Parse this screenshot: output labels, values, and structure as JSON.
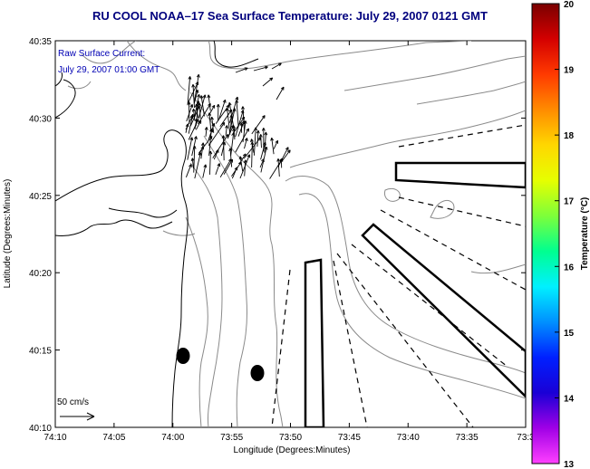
{
  "title": "RU COOL  NOAA–17  Sea Surface Temperature:  July 29, 2007 0121 GMT",
  "current_legend": {
    "line1": "Raw Surface Current:",
    "line2": "July 29, 2007 01:00 GMT"
  },
  "scale_label": "50 cm/s",
  "axes": {
    "xlabel": "Longitude (Degrees:Minutes)",
    "ylabel": "Latitude (Degrees:Minutes)",
    "xticks": [
      "74:10",
      "74:05",
      "74:00",
      "73:55",
      "73:50",
      "73:45",
      "73:40",
      "73:35",
      "73:3"
    ],
    "yticks": [
      "40:35",
      "40:30",
      "40:25",
      "40:20",
      "40:15",
      "40:10"
    ]
  },
  "colorbar": {
    "label": "Temperature (°C)",
    "ticks": [
      "20",
      "19",
      "18",
      "17",
      "16",
      "15",
      "14",
      "13"
    ],
    "min": 13,
    "max": 20,
    "colormap": [
      "#7a0000",
      "#d40000",
      "#ff3a00",
      "#ff8c00",
      "#ffd700",
      "#e6ff00",
      "#7dff3a",
      "#00ff90",
      "#00f0ff",
      "#0090ff",
      "#0020ff",
      "#1a00d6",
      "#a000e6",
      "#ff40ff"
    ]
  },
  "colors": {
    "title": "#00007e",
    "legend_text": "#0000b4",
    "contour": "#7a7a7a",
    "coast": "#000000"
  }
}
